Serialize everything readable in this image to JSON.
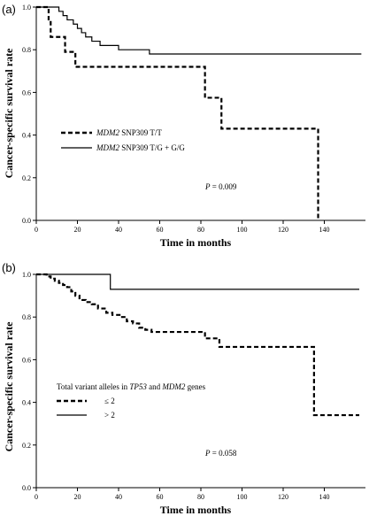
{
  "chart_data": [
    {
      "panel_label": "(a)",
      "type": "line",
      "subtype": "step (Kaplan-Meier)",
      "xlabel": "Time in months",
      "ylabel": "Cancer-specific survival rate",
      "xlim": [
        0,
        160
      ],
      "ylim": [
        0.0,
        1.0
      ],
      "x_ticks": [
        "0",
        "20",
        "40",
        "60",
        "80",
        "100",
        "120",
        "140"
      ],
      "y_ticks": [
        "0.0",
        "0.2",
        "0.4",
        "0.6",
        "0.8",
        "1.0"
      ],
      "legend": [
        {
          "italic": "MDM2",
          "text": " SNP309 T/T",
          "style": "dashed"
        },
        {
          "italic": "MDM2",
          "text": " SNP309 T/G + G/G",
          "style": "solid"
        }
      ],
      "annotation": {
        "italic": "P",
        "text": " = 0.009"
      },
      "series": [
        {
          "style": "dashed",
          "x": [
            0,
            5,
            6,
            7,
            13,
            14,
            18,
            19,
            81,
            82,
            89,
            90,
            136,
            137
          ],
          "y": [
            1.0,
            1.0,
            0.93,
            0.86,
            0.86,
            0.79,
            0.79,
            0.72,
            0.72,
            0.575,
            0.575,
            0.43,
            0.43,
            0.0
          ]
        },
        {
          "style": "solid",
          "x": [
            0,
            9,
            11,
            13,
            15,
            18,
            20,
            22,
            24,
            27,
            31,
            34,
            40,
            46,
            52,
            55,
            158
          ],
          "y": [
            1.0,
            1.0,
            0.98,
            0.96,
            0.94,
            0.92,
            0.9,
            0.88,
            0.86,
            0.84,
            0.82,
            0.82,
            0.8,
            0.8,
            0.8,
            0.78,
            0.78
          ]
        }
      ]
    },
    {
      "panel_label": "(b)",
      "type": "line",
      "subtype": "step (Kaplan-Meier)",
      "xlabel": "Time in months",
      "ylabel": "Cancer-specific survival rate",
      "xlim": [
        0,
        160
      ],
      "ylim": [
        0.0,
        1.0
      ],
      "x_ticks": [
        "0",
        "20",
        "40",
        "60",
        "80",
        "100",
        "120",
        "140"
      ],
      "y_ticks": [
        "0.0",
        "0.2",
        "0.4",
        "0.6",
        "0.8",
        "1.0"
      ],
      "legend_title_parts": [
        {
          "t": "Total variant alleles in ",
          "i": false
        },
        {
          "t": "TP53",
          "i": true
        },
        {
          "t": " and ",
          "i": false
        },
        {
          "t": "MDM2",
          "i": true
        },
        {
          "t": " genes",
          "i": false
        }
      ],
      "legend": [
        {
          "italic": "",
          "text": "≤ 2",
          "style": "dashed"
        },
        {
          "italic": "",
          "text": "> 2",
          "style": "solid"
        }
      ],
      "annotation": {
        "italic": "P",
        "text": " = 0.058"
      },
      "series": [
        {
          "style": "dashed",
          "x": [
            0,
            5,
            7,
            9,
            11,
            13,
            15,
            17,
            19,
            21,
            24,
            27,
            30,
            34,
            37,
            41,
            44,
            47,
            50,
            53,
            56,
            80,
            82,
            88,
            89,
            134,
            135,
            157
          ],
          "y": [
            1.0,
            0.99,
            0.98,
            0.97,
            0.96,
            0.95,
            0.94,
            0.92,
            0.9,
            0.88,
            0.87,
            0.86,
            0.84,
            0.82,
            0.81,
            0.8,
            0.78,
            0.77,
            0.75,
            0.74,
            0.73,
            0.73,
            0.7,
            0.7,
            0.66,
            0.66,
            0.34,
            0.34
          ]
        },
        {
          "style": "solid",
          "x": [
            0,
            35,
            36,
            157
          ],
          "y": [
            1.0,
            1.0,
            0.93,
            0.93
          ]
        }
      ]
    }
  ]
}
